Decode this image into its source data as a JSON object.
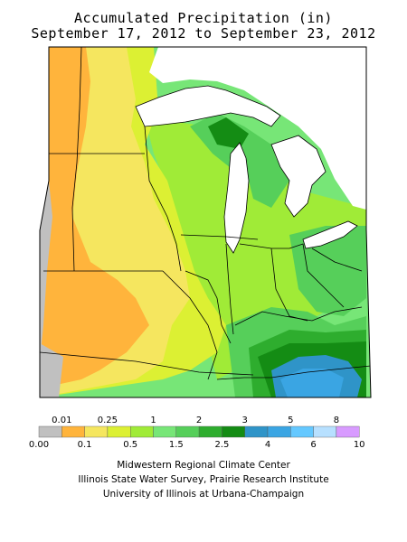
{
  "title": {
    "line1": "Accumulated Precipitation (in)",
    "line2": "September 17, 2012 to September 23, 2012"
  },
  "legend": {
    "colors": [
      "#c0c0c0",
      "#ffb43c",
      "#f5e65f",
      "#dcf033",
      "#a0eb37",
      "#77e677",
      "#56cf5a",
      "#2ead2e",
      "#148c14",
      "#2f94c8",
      "#3aa5e3",
      "#64c8ff",
      "#b7e0ff",
      "#d89bff"
    ],
    "top_labels": [
      {
        "text": "0.01",
        "pos": 1
      },
      {
        "text": "0.25",
        "pos": 3
      },
      {
        "text": "1",
        "pos": 5
      },
      {
        "text": "2",
        "pos": 7
      },
      {
        "text": "3",
        "pos": 9
      },
      {
        "text": "5",
        "pos": 11
      },
      {
        "text": "8",
        "pos": 13
      }
    ],
    "bottom_labels": [
      {
        "text": "0.00",
        "pos": 0
      },
      {
        "text": "0.1",
        "pos": 2
      },
      {
        "text": "0.5",
        "pos": 4
      },
      {
        "text": "1.5",
        "pos": 6
      },
      {
        "text": "2.5",
        "pos": 8
      },
      {
        "text": "4",
        "pos": 10
      },
      {
        "text": "6",
        "pos": 12
      },
      {
        "text": "10",
        "pos": 14
      }
    ]
  },
  "credits": {
    "line1": "Midwestern Regional Climate Center",
    "line2": "Illinois State Water Survey, Prairie Research Institute",
    "line3": "University of Illinois at Urbana-Champaign"
  },
  "map": {
    "region": "Midwestern United States",
    "colors": {
      "trace": "#c0c0c0",
      "light": "#ffb43c",
      "dry": "#f5e65f",
      "low": "#dcf033",
      "mid": "#a0eb37",
      "moderate": "#77e677",
      "wet": "#56cf5a",
      "wetter": "#2ead2e",
      "heavy": "#148c14",
      "very_heavy": "#2f94c8",
      "extreme": "#3aa5e3",
      "lake": "#ffffff"
    }
  }
}
